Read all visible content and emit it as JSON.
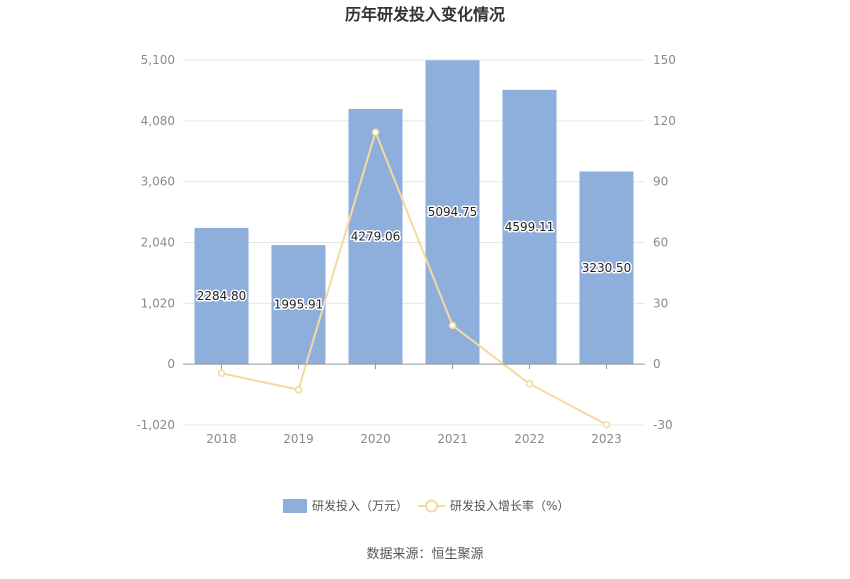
{
  "chart_data": {
    "type": "bar",
    "title": "历年研发投入变化情况",
    "categories": [
      "2018",
      "2019",
      "2020",
      "2021",
      "2022",
      "2023"
    ],
    "series": [
      {
        "name": "研发投入（万元）",
        "type": "bar",
        "axis": "left",
        "values": [
          2284.8,
          1995.91,
          4279.06,
          5094.75,
          4599.11,
          3230.5
        ],
        "labels": [
          "2284.80",
          "1995.91",
          "4279.06",
          "5094.75",
          "4599.11",
          "3230.50"
        ],
        "color": "#8eaedb"
      },
      {
        "name": "研发投入增长率（%）",
        "type": "line",
        "axis": "right",
        "values": [
          -4.5,
          -12.6,
          114.4,
          19.1,
          -9.7,
          -29.8
        ],
        "color": "#f5d9a0"
      }
    ],
    "y_left": {
      "min": -1020,
      "max": 5100,
      "ticks": [
        -1020,
        0,
        1020,
        2040,
        3060,
        4080,
        5100
      ],
      "tick_labels": [
        "-1,020",
        "0",
        "1,020",
        "2,040",
        "3,060",
        "4,080",
        "5,100"
      ]
    },
    "y_right": {
      "min": -30,
      "max": 150,
      "ticks": [
        -30,
        0,
        30,
        60,
        90,
        120,
        150
      ],
      "tick_labels": [
        "-30",
        "0",
        "30",
        "60",
        "90",
        "120",
        "150"
      ]
    },
    "grid": true,
    "legend": "bottom-center"
  },
  "source": "数据来源：恒生聚源"
}
